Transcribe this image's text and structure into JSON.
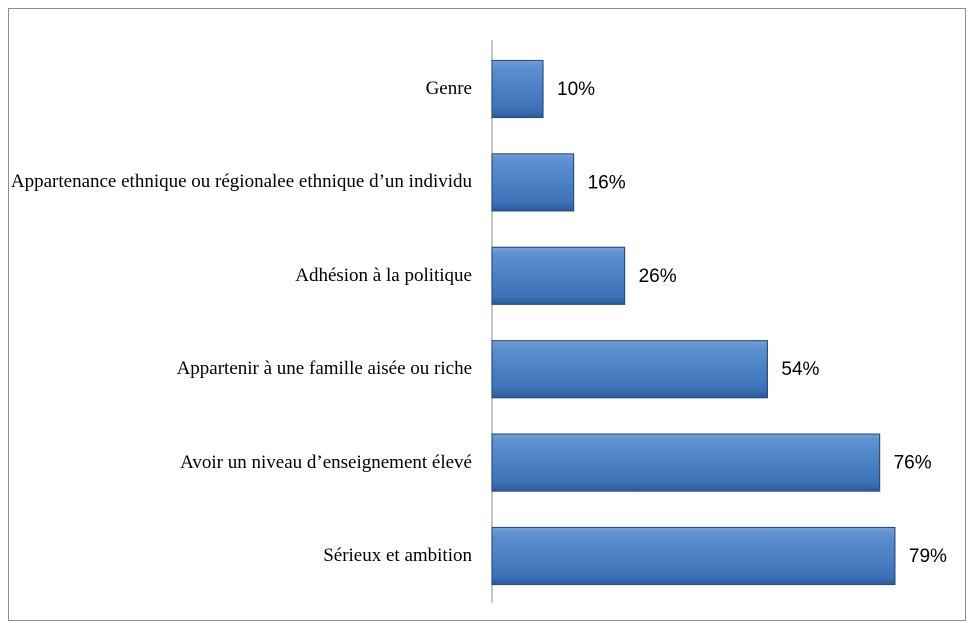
{
  "chart_data": {
    "type": "hbar",
    "categories": [
      "Genre",
      "Appartenance ethnique ou régionalee ethnique d’un individu",
      "Adhésion à la politique",
      "Appartenir à une famille aisée ou riche",
      "Avoir un niveau d’enseignement élevé",
      "Sérieux et ambition"
    ],
    "values": [
      10,
      16,
      26,
      54,
      76,
      79
    ],
    "value_labels": [
      "10%",
      "16%",
      "26%",
      "54%",
      "76%",
      "79%"
    ],
    "color": "#4a7ebf",
    "xlim": [
      0,
      90
    ]
  }
}
